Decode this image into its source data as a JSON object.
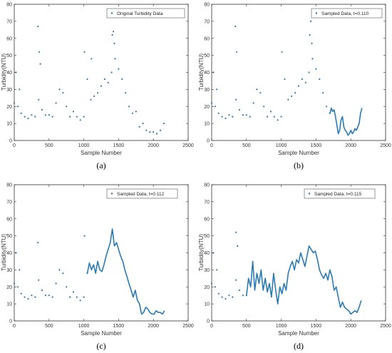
{
  "colors": {
    "series": "#2a7ab3",
    "axis": "#333333"
  },
  "chart_data": [
    {
      "type": "scatter",
      "caption": "(a)",
      "xlabel": "Sample Number",
      "ylabel": "Turbidity(NTU)",
      "xlim": [
        0,
        2500
      ],
      "ylim": [
        0,
        80
      ],
      "xticks": [
        0,
        500,
        1000,
        1500,
        2000,
        2500
      ],
      "yticks": [
        0,
        10,
        20,
        30,
        40,
        50,
        60,
        70,
        80
      ],
      "legend": "top-right",
      "series": [
        {
          "name": "Original Turbidity Data",
          "style": "points",
          "x": [
            0,
            25,
            50,
            75,
            100,
            150,
            200,
            250,
            300,
            350,
            400,
            450,
            500,
            550,
            600,
            650,
            700,
            750,
            800,
            850,
            900,
            950,
            1000,
            1050,
            1100,
            1150,
            1200,
            1250,
            1300,
            1350,
            1400,
            1450,
            1500,
            1550,
            1600,
            1650,
            1700,
            1750,
            1800,
            1850,
            1900,
            1950,
            2000,
            2050,
            2100,
            2150
          ],
          "y": [
            22,
            40,
            20,
            30,
            16,
            14,
            13,
            15,
            14,
            24,
            18,
            15,
            15,
            14,
            22,
            30,
            28,
            20,
            14,
            17,
            14,
            12,
            14,
            36,
            24,
            26,
            28,
            32,
            36,
            34,
            40,
            48,
            42,
            36,
            28,
            20,
            16,
            17,
            8,
            10,
            6,
            5,
            5,
            4,
            6,
            10
          ]
        }
      ],
      "outliers": {
        "x": [
          340,
          360,
          375,
          1010,
          1110,
          1410,
          1425,
          1440
        ],
        "y": [
          67,
          52,
          45,
          52,
          48,
          62,
          64,
          57
        ]
      }
    },
    {
      "type": "scatter",
      "caption": "(b)",
      "xlabel": "Sample Number",
      "ylabel": "Turbidity(NTU)",
      "xlim": [
        0,
        2500
      ],
      "ylim": [
        0,
        80
      ],
      "xticks": [
        0,
        500,
        1000,
        1500,
        2000,
        2500
      ],
      "yticks": [
        0,
        10,
        20,
        30,
        40,
        50,
        60,
        70,
        80
      ],
      "legend": "top-right",
      "series": [
        {
          "name": "Sampled Data, t=0.110",
          "style": "points",
          "x": [
            0,
            25,
            50,
            75,
            100,
            150,
            200,
            250,
            300,
            350,
            400,
            450,
            500,
            550,
            600,
            650,
            700,
            750,
            800,
            850,
            900,
            950,
            1000,
            1050,
            1100,
            1150,
            1200,
            1250,
            1300,
            1350,
            1400,
            1450,
            1500,
            1550,
            1600,
            1650,
            1700
          ],
          "y": [
            22,
            40,
            20,
            30,
            16,
            14,
            13,
            15,
            14,
            24,
            18,
            15,
            15,
            14,
            22,
            30,
            28,
            20,
            14,
            17,
            14,
            12,
            14,
            36,
            24,
            26,
            28,
            32,
            36,
            34,
            40,
            48,
            42,
            36,
            28,
            20,
            16
          ]
        },
        {
          "name": "",
          "style": "line",
          "x": [
            1700,
            1720,
            1740,
            1760,
            1780,
            1800,
            1820,
            1840,
            1860,
            1880,
            1900,
            1920,
            1940,
            1960,
            1980,
            2000,
            2020,
            2040,
            2060,
            2080,
            2100,
            2120,
            2140,
            2160
          ],
          "y": [
            16,
            19,
            17,
            18,
            14,
            9,
            4,
            6,
            12,
            14,
            8,
            6,
            5,
            3,
            4,
            6,
            4,
            5,
            7,
            6,
            8,
            10,
            16,
            19
          ]
        }
      ],
      "outliers": {
        "x": [
          340,
          360,
          1010,
          1410,
          1425,
          1440
        ],
        "y": [
          67,
          52,
          52,
          62,
          70,
          57
        ]
      }
    },
    {
      "type": "scatter",
      "caption": "(c)",
      "xlabel": "Sample Number",
      "ylabel": "Turbidity(NTU)",
      "xlim": [
        0,
        2500
      ],
      "ylim": [
        0,
        80
      ],
      "xticks": [
        0,
        500,
        1000,
        1500,
        2000,
        2500
      ],
      "yticks": [
        0,
        10,
        20,
        30,
        40,
        50,
        60,
        70,
        80
      ],
      "legend": "top-right",
      "series": [
        {
          "name": "Sampled Data, t=0.112",
          "style": "points",
          "x": [
            0,
            25,
            50,
            75,
            100,
            150,
            200,
            250,
            300,
            350,
            400,
            450,
            500,
            550,
            600,
            650,
            700,
            750,
            800,
            850,
            900,
            950,
            1000,
            1050
          ],
          "y": [
            22,
            40,
            20,
            30,
            16,
            14,
            13,
            15,
            14,
            24,
            18,
            15,
            15,
            14,
            22,
            30,
            28,
            20,
            14,
            17,
            14,
            12,
            14,
            28
          ]
        },
        {
          "name": "",
          "style": "line",
          "x": [
            1050,
            1080,
            1110,
            1140,
            1170,
            1200,
            1230,
            1260,
            1290,
            1320,
            1350,
            1380,
            1410,
            1440,
            1470,
            1500,
            1530,
            1560,
            1590,
            1620,
            1650,
            1680,
            1710,
            1740,
            1770,
            1800,
            1830,
            1860,
            1890,
            1920,
            1950,
            1980,
            2010,
            2040,
            2070,
            2100,
            2130,
            2160
          ],
          "y": [
            28,
            34,
            30,
            33,
            28,
            35,
            30,
            29,
            33,
            38,
            42,
            46,
            54,
            44,
            46,
            42,
            38,
            35,
            30,
            26,
            22,
            18,
            14,
            18,
            12,
            10,
            4,
            5,
            8,
            7,
            5,
            4,
            4,
            6,
            5,
            5,
            4,
            6
          ]
        }
      ],
      "outliers": {
        "x": [
          340,
          1010
        ],
        "y": [
          46,
          50
        ]
      }
    },
    {
      "type": "scatter",
      "caption": "(d)",
      "xlabel": "Sample Number",
      "ylabel": "Turbidity(NTU)",
      "xlim": [
        0,
        2500
      ],
      "ylim": [
        0,
        80
      ],
      "xticks": [
        0,
        500,
        1000,
        1500,
        2000,
        2500
      ],
      "yticks": [
        0,
        10,
        20,
        30,
        40,
        50,
        60,
        70,
        80
      ],
      "legend": "top-right",
      "series": [
        {
          "name": "Sampled Data, t=0.115",
          "style": "points",
          "x": [
            0,
            25,
            50,
            75,
            100,
            150,
            200,
            250,
            300,
            350,
            400,
            450,
            500
          ],
          "y": [
            22,
            40,
            20,
            30,
            16,
            14,
            13,
            15,
            14,
            24,
            18,
            15,
            15
          ]
        },
        {
          "name": "",
          "style": "line",
          "x": [
            500,
            530,
            560,
            590,
            620,
            650,
            680,
            710,
            740,
            770,
            800,
            830,
            860,
            890,
            920,
            950,
            980,
            1010,
            1040,
            1070,
            1100,
            1130,
            1160,
            1190,
            1220,
            1250,
            1280,
            1310,
            1340,
            1370,
            1400,
            1430,
            1460,
            1490,
            1520,
            1550,
            1580,
            1610,
            1640,
            1670,
            1700,
            1730,
            1760,
            1790,
            1820,
            1850,
            1880,
            1910,
            1940,
            1970,
            2000,
            2030,
            2060,
            2090,
            2120,
            2150
          ],
          "y": [
            15,
            25,
            20,
            35,
            18,
            28,
            22,
            30,
            18,
            25,
            17,
            22,
            14,
            28,
            18,
            10,
            20,
            16,
            22,
            18,
            28,
            32,
            35,
            30,
            36,
            34,
            40,
            36,
            32,
            38,
            44,
            42,
            40,
            41,
            36,
            30,
            27,
            25,
            28,
            24,
            30,
            26,
            18,
            20,
            14,
            8,
            11,
            8,
            7,
            6,
            4,
            5,
            6,
            5,
            8,
            12
          ]
        }
      ],
      "outliers": {
        "x": [
          350,
          370
        ],
        "y": [
          52,
          44
        ]
      }
    }
  ]
}
